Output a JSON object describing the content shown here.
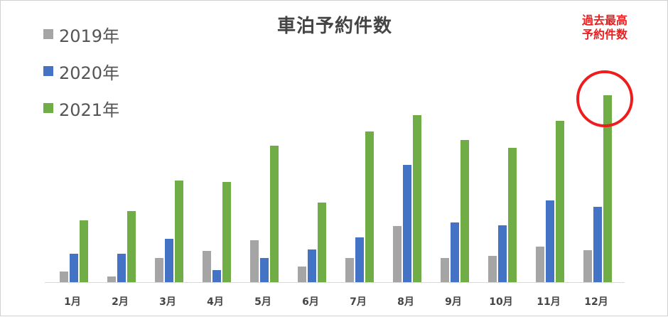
{
  "chart_data": {
    "type": "bar",
    "title": "車泊予約件数",
    "categories": [
      "1月",
      "2月",
      "3月",
      "4月",
      "5月",
      "6月",
      "7月",
      "8月",
      "9月",
      "10月",
      "11月",
      "12月"
    ],
    "series": [
      {
        "name": "2019年",
        "color": "#a5a5a5",
        "values": [
          15,
          8,
          34,
          44,
          59,
          22,
          34,
          79,
          34,
          37,
          50,
          45
        ]
      },
      {
        "name": "2020年",
        "color": "#4472c4",
        "values": [
          40,
          40,
          61,
          17,
          34,
          46,
          63,
          165,
          84,
          80,
          115,
          106
        ]
      },
      {
        "name": "2021年",
        "color": "#70ad47",
        "values": [
          87,
          100,
          143,
          141,
          192,
          112,
          212,
          235,
          200,
          189,
          227,
          263
        ]
      }
    ],
    "ylim": [
      0,
      300
    ],
    "xlabel": "",
    "ylabel": "",
    "grid": false,
    "legend_position": "top-left",
    "annotation": {
      "lines": [
        "過去最高",
        "予約件数"
      ],
      "target_category": "12月",
      "color": "#ee1c1c"
    }
  }
}
